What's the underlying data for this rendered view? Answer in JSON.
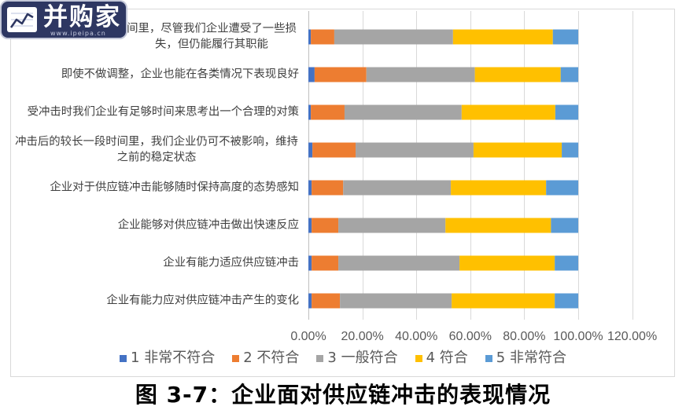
{
  "logo": {
    "name": "并购家",
    "site": "www.ipeipa.cn",
    "icon": "line-chart-icon"
  },
  "caption": "图 3-7：企业面对供应链冲击的表现情况",
  "chart_data": {
    "type": "bar",
    "orientation": "horizontal",
    "stacking": "percent",
    "categories": [
      "间里，尽管我们企业遭受了一些损失，但仍能履行其职能",
      "即使不做调整，企业也能在各类情况下表现良好",
      "受冲击时我们企业有足够时间来思考出一个合理的对策",
      "冲击后的较长一段时间里，我们企业仍可不被影响，维持之前的稳定状态",
      "企业对于供应链冲击能够随时保持高度的态势感知",
      "企业能够对供应链冲击做出快速反应",
      "企业有能力适应供应链冲击",
      "企业有能力应对供应链冲击产生的变化"
    ],
    "series": [
      {
        "name": "1 非常不符合",
        "color": "#4472C4",
        "values": [
          0.9,
          2.3,
          0.9,
          1.5,
          1.2,
          1.2,
          1.2,
          1.2
        ]
      },
      {
        "name": "2 不符合",
        "color": "#ED7D31",
        "values": [
          8.7,
          19.2,
          12.5,
          16.0,
          11.7,
          9.9,
          9.9,
          10.5
        ]
      },
      {
        "name": "3 一般符合",
        "color": "#A5A5A5",
        "values": [
          44.0,
          40.2,
          43.4,
          43.7,
          39.9,
          39.7,
          44.9,
          41.4
        ]
      },
      {
        "name": "4 符合",
        "color": "#FFC000",
        "values": [
          37.0,
          31.8,
          34.7,
          32.7,
          35.3,
          39.1,
          35.3,
          38.2
        ]
      },
      {
        "name": "5 非常符合",
        "color": "#5B9BD5",
        "values": [
          9.4,
          6.5,
          8.5,
          6.1,
          11.9,
          10.1,
          8.7,
          8.7
        ]
      }
    ],
    "x_axis": {
      "min": 0,
      "max": 120,
      "step": 20,
      "tick_labels": [
        "0.00%",
        "20.00%",
        "40.00%",
        "60.00%",
        "80.00%",
        "100.00%",
        "120.00%"
      ]
    },
    "grid": {
      "vertical": true,
      "horizontal": false
    },
    "legend_position": "bottom"
  }
}
